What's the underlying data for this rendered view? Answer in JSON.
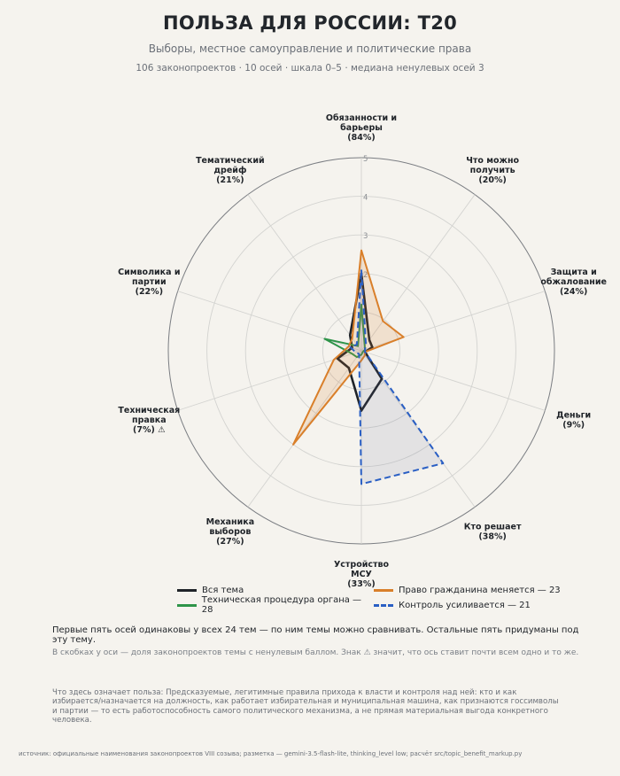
{
  "header": {
    "title": "ПОЛЬЗА ДЛЯ РОССИИ: T20",
    "subtitle": "Выборы, местное самоуправление и политические права",
    "caption": "106 законопроектов · 10 осей · шкала 0–5 · медиана ненулевых осей 3"
  },
  "chart_data": {
    "type": "radar",
    "title": "ПОЛЬЗА ДЛЯ РОССИИ: T20",
    "rmax": 5,
    "radial_ticks": [
      2,
      3,
      4,
      5
    ],
    "grid": true,
    "legend_position": "bottom",
    "axes": [
      {
        "label": "Обязанности и барьеры",
        "share": "(84%)",
        "warn": false
      },
      {
        "label": "Что можно получить",
        "share": "(20%)",
        "warn": false
      },
      {
        "label": "Защита и обжалование",
        "share": "(24%)",
        "warn": false
      },
      {
        "label": "Деньги",
        "share": "(9%)",
        "warn": false
      },
      {
        "label": "Кто решает",
        "share": "(38%)",
        "warn": false
      },
      {
        "label": "Устройство МСУ",
        "share": "(33%)",
        "warn": false
      },
      {
        "label": "Механика выборов",
        "share": "(27%)",
        "warn": false
      },
      {
        "label": "Техническая правка",
        "share": "(7%)",
        "warn": true
      },
      {
        "label": "Символика и партии",
        "share": "(22%)",
        "warn": false
      },
      {
        "label": "Тематический дрейф",
        "share": "(21%)",
        "warn": false
      }
    ],
    "warn_symbol": "⚠",
    "series": [
      {
        "name": "Вся тема",
        "color": "#1f2328",
        "dash": false,
        "width": 2.6,
        "fill": "none",
        "values": [
          2.0,
          0.35,
          0.3,
          0.1,
          0.9,
          1.55,
          0.55,
          0.65,
          0.25,
          0.5
        ]
      },
      {
        "name": "Техническая процедура органа — 28",
        "color": "#2e9449",
        "dash": false,
        "width": 2.0,
        "fill": "none",
        "values": [
          1.2,
          0.15,
          0.1,
          0.05,
          0.05,
          0.1,
          0.2,
          0.25,
          1.0,
          0.15
        ]
      },
      {
        "name": "Право гражданина меняется — 23",
        "color": "#d97f2a",
        "dash": false,
        "width": 2.0,
        "fill": "rgba(217,127,42,0.16)",
        "values": [
          2.6,
          0.95,
          1.15,
          0.1,
          0.15,
          0.25,
          3.0,
          0.75,
          0.35,
          0.4
        ]
      },
      {
        "name": "Контроль усиливается — 21",
        "color": "#2a5fc4",
        "dash": true,
        "width": 2.0,
        "fill": "rgba(100,110,150,0.12)",
        "values": [
          2.1,
          0.2,
          0.1,
          0.1,
          3.6,
          3.45,
          0.1,
          0.15,
          0.3,
          0.2
        ]
      }
    ]
  },
  "legend": [
    {
      "label": "Вся тема",
      "color": "#1f2328",
      "dash": false
    },
    {
      "label": "Право гражданина меняется — 23",
      "color": "#d97f2a",
      "dash": false
    },
    {
      "label": "Техническая процедура органа — 28",
      "color": "#2e9449",
      "dash": false
    },
    {
      "label": "Контроль усиливается — 21",
      "color": "#2a5fc4",
      "dash": true
    }
  ],
  "notes": {
    "note1": "Первые пять осей одинаковы у всех 24 тем — по ним темы можно сравнивать. Остальные пять придуманы под эту тему.",
    "note2": "В скобках у оси — доля законопроектов темы с ненулевым баллом. Знак ⚠ значит, что ось ставит почти всем одно и то же.",
    "definition": "Что здесь означает польза: Предсказуемые, легитимные правила прихода к власти и контроля над ней: кто и как избирается/назначается на должность, как работает избирательная и муниципальная машина, как признаются госсимволы и партии — то есть работоспособность самого политического механизма, а не прямая материальная выгода конкретного человека.",
    "source": "источник: официальные наименования законопроектов VIII созыва; разметка — gemini-3.5-flash-lite, thinking_level low; расчёт src/topic_benefit_markup.py"
  }
}
